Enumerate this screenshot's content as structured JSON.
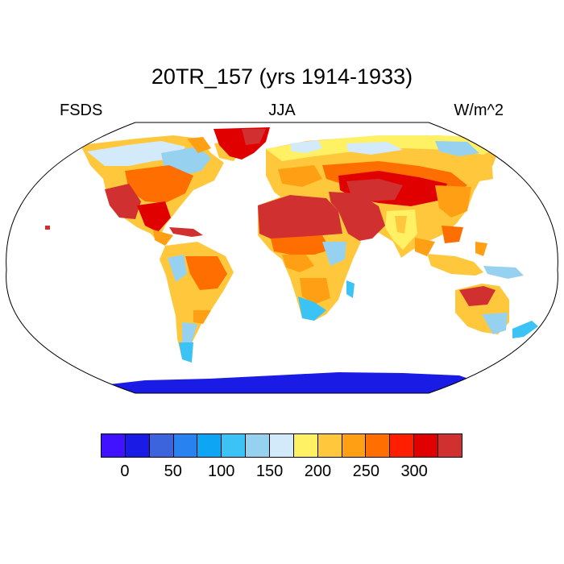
{
  "title": "20TR_157 (yrs 1914-1933)",
  "left_label": "FSDS",
  "center_label": "JJA",
  "right_label": "W/m^2",
  "colorbar": {
    "colors": [
      "#4112ff",
      "#1b1be6",
      "#3c64dc",
      "#2882f0",
      "#0ea5f5",
      "#3cc3f5",
      "#96d2f0",
      "#d2eafa",
      "#fff064",
      "#ffc83c",
      "#ffa014",
      "#ff6e00",
      "#ff1e00",
      "#e10000",
      "#d03030"
    ],
    "tick_labels": [
      "0",
      "50",
      "100",
      "150",
      "200",
      "250",
      "300"
    ],
    "tick_after_cell": [
      1,
      3,
      5,
      7,
      9,
      11,
      13
    ]
  },
  "colors": {
    "ocean": "#ffffff",
    "antarctica": "#1b1be6",
    "coastline": "#000000"
  }
}
